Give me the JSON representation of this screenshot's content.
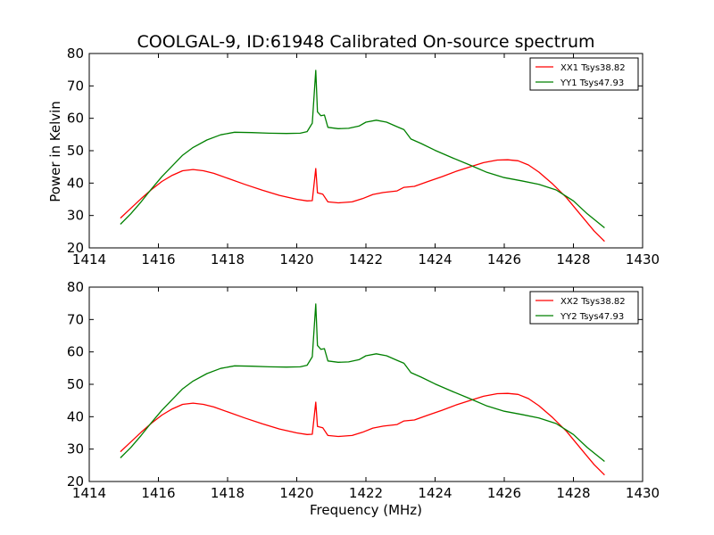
{
  "title": "COOLGAL-9, ID:61948 Calibrated On-source spectrum",
  "xlabel": "Frequency (MHz)",
  "ylabel": "Power in Kelvin",
  "colors": {
    "xx": "#ff0000",
    "yy": "#008000"
  },
  "chart_data": [
    {
      "type": "line",
      "xlim": [
        1414,
        1430
      ],
      "ylim": [
        20,
        80
      ],
      "xticks": [
        "1414",
        "1416",
        "1418",
        "1420",
        "1422",
        "1424",
        "1426",
        "1428",
        "1430"
      ],
      "yticks": [
        "20",
        "30",
        "40",
        "50",
        "60",
        "70",
        "80"
      ],
      "ylabel": "Power in Kelvin",
      "xlabel": "",
      "legend_position": "top-right",
      "series": [
        {
          "name": "XX1 Tsys38.82",
          "color": "#ff0000",
          "points": [
            [
              1414.9,
              29.2
            ],
            [
              1415.2,
              32.2
            ],
            [
              1415.5,
              35.2
            ],
            [
              1415.8,
              38.0
            ],
            [
              1416.1,
              40.5
            ],
            [
              1416.4,
              42.4
            ],
            [
              1416.7,
              43.8
            ],
            [
              1417.0,
              44.2
            ],
            [
              1417.3,
              43.8
            ],
            [
              1417.6,
              43.0
            ],
            [
              1418.0,
              41.5
            ],
            [
              1418.5,
              39.6
            ],
            [
              1419.0,
              37.8
            ],
            [
              1419.5,
              36.2
            ],
            [
              1420.0,
              35.0
            ],
            [
              1420.3,
              34.5
            ],
            [
              1420.45,
              34.6
            ],
            [
              1420.55,
              44.5
            ],
            [
              1420.6,
              37.0
            ],
            [
              1420.75,
              36.6
            ],
            [
              1420.9,
              34.2
            ],
            [
              1421.2,
              33.9
            ],
            [
              1421.6,
              34.2
            ],
            [
              1421.9,
              35.2
            ],
            [
              1422.2,
              36.5
            ],
            [
              1422.5,
              37.1
            ],
            [
              1422.9,
              37.6
            ],
            [
              1423.1,
              38.7
            ],
            [
              1423.4,
              39.0
            ],
            [
              1423.8,
              40.5
            ],
            [
              1424.2,
              42.0
            ],
            [
              1424.6,
              43.6
            ],
            [
              1425.0,
              45.0
            ],
            [
              1425.4,
              46.3
            ],
            [
              1425.8,
              47.1
            ],
            [
              1426.1,
              47.2
            ],
            [
              1426.4,
              46.9
            ],
            [
              1426.7,
              45.6
            ],
            [
              1427.0,
              43.4
            ],
            [
              1427.4,
              39.7
            ],
            [
              1427.8,
              35.5
            ],
            [
              1428.2,
              30.3
            ],
            [
              1428.6,
              25.2
            ],
            [
              1428.9,
              22.0
            ]
          ]
        },
        {
          "name": "YY1 Tsys47.93",
          "color": "#008000",
          "points": [
            [
              1414.9,
              27.3
            ],
            [
              1415.2,
              30.5
            ],
            [
              1415.5,
              34.2
            ],
            [
              1415.8,
              38.2
            ],
            [
              1416.1,
              42.0
            ],
            [
              1416.4,
              45.3
            ],
            [
              1416.7,
              48.6
            ],
            [
              1417.0,
              51.0
            ],
            [
              1417.4,
              53.3
            ],
            [
              1417.8,
              54.9
            ],
            [
              1418.2,
              55.7
            ],
            [
              1418.7,
              55.6
            ],
            [
              1419.2,
              55.4
            ],
            [
              1419.7,
              55.3
            ],
            [
              1420.1,
              55.4
            ],
            [
              1420.3,
              55.9
            ],
            [
              1420.45,
              58.5
            ],
            [
              1420.55,
              74.8
            ],
            [
              1420.6,
              62.0
            ],
            [
              1420.7,
              60.8
            ],
            [
              1420.8,
              61.0
            ],
            [
              1420.9,
              57.2
            ],
            [
              1421.2,
              56.8
            ],
            [
              1421.5,
              56.9
            ],
            [
              1421.8,
              57.6
            ],
            [
              1422.0,
              58.8
            ],
            [
              1422.3,
              59.4
            ],
            [
              1422.6,
              58.8
            ],
            [
              1422.9,
              57.4
            ],
            [
              1423.1,
              56.5
            ],
            [
              1423.3,
              53.6
            ],
            [
              1423.6,
              52.2
            ],
            [
              1424.0,
              50.1
            ],
            [
              1424.5,
              47.8
            ],
            [
              1425.0,
              45.6
            ],
            [
              1425.5,
              43.3
            ],
            [
              1426.0,
              41.7
            ],
            [
              1426.5,
              40.7
            ],
            [
              1427.0,
              39.6
            ],
            [
              1427.5,
              37.9
            ],
            [
              1428.0,
              34.5
            ],
            [
              1428.4,
              30.5
            ],
            [
              1428.9,
              26.2
            ]
          ]
        }
      ]
    },
    {
      "type": "line",
      "xlim": [
        1414,
        1430
      ],
      "ylim": [
        20,
        80
      ],
      "xticks": [
        "1414",
        "1416",
        "1418",
        "1420",
        "1422",
        "1424",
        "1426",
        "1428",
        "1430"
      ],
      "yticks": [
        "20",
        "30",
        "40",
        "50",
        "60",
        "70",
        "80"
      ],
      "ylabel": "",
      "xlabel": "Frequency (MHz)",
      "legend_position": "top-right",
      "series": [
        {
          "name": "XX2 Tsys38.82",
          "color": "#ff0000",
          "points": [
            [
              1414.9,
              29.2
            ],
            [
              1415.2,
              32.2
            ],
            [
              1415.5,
              35.2
            ],
            [
              1415.8,
              38.0
            ],
            [
              1416.1,
              40.5
            ],
            [
              1416.4,
              42.4
            ],
            [
              1416.7,
              43.8
            ],
            [
              1417.0,
              44.2
            ],
            [
              1417.3,
              43.8
            ],
            [
              1417.6,
              43.0
            ],
            [
              1418.0,
              41.5
            ],
            [
              1418.5,
              39.6
            ],
            [
              1419.0,
              37.8
            ],
            [
              1419.5,
              36.2
            ],
            [
              1420.0,
              35.0
            ],
            [
              1420.3,
              34.5
            ],
            [
              1420.45,
              34.6
            ],
            [
              1420.55,
              44.5
            ],
            [
              1420.6,
              37.0
            ],
            [
              1420.75,
              36.6
            ],
            [
              1420.9,
              34.2
            ],
            [
              1421.2,
              33.9
            ],
            [
              1421.6,
              34.2
            ],
            [
              1421.9,
              35.2
            ],
            [
              1422.2,
              36.5
            ],
            [
              1422.5,
              37.1
            ],
            [
              1422.9,
              37.6
            ],
            [
              1423.1,
              38.7
            ],
            [
              1423.4,
              39.0
            ],
            [
              1423.8,
              40.5
            ],
            [
              1424.2,
              42.0
            ],
            [
              1424.6,
              43.6
            ],
            [
              1425.0,
              45.0
            ],
            [
              1425.4,
              46.3
            ],
            [
              1425.8,
              47.1
            ],
            [
              1426.1,
              47.2
            ],
            [
              1426.4,
              46.9
            ],
            [
              1426.7,
              45.6
            ],
            [
              1427.0,
              43.4
            ],
            [
              1427.4,
              39.7
            ],
            [
              1427.8,
              35.5
            ],
            [
              1428.2,
              30.3
            ],
            [
              1428.6,
              25.2
            ],
            [
              1428.9,
              22.0
            ]
          ]
        },
        {
          "name": "YY2 Tsys47.93",
          "color": "#008000",
          "points": [
            [
              1414.9,
              27.3
            ],
            [
              1415.2,
              30.5
            ],
            [
              1415.5,
              34.2
            ],
            [
              1415.8,
              38.2
            ],
            [
              1416.1,
              42.0
            ],
            [
              1416.4,
              45.3
            ],
            [
              1416.7,
              48.6
            ],
            [
              1417.0,
              51.0
            ],
            [
              1417.4,
              53.3
            ],
            [
              1417.8,
              54.9
            ],
            [
              1418.2,
              55.7
            ],
            [
              1418.7,
              55.6
            ],
            [
              1419.2,
              55.4
            ],
            [
              1419.7,
              55.3
            ],
            [
              1420.1,
              55.4
            ],
            [
              1420.3,
              55.9
            ],
            [
              1420.45,
              58.5
            ],
            [
              1420.55,
              74.8
            ],
            [
              1420.6,
              62.0
            ],
            [
              1420.7,
              60.8
            ],
            [
              1420.8,
              61.0
            ],
            [
              1420.9,
              57.2
            ],
            [
              1421.2,
              56.8
            ],
            [
              1421.5,
              56.9
            ],
            [
              1421.8,
              57.6
            ],
            [
              1422.0,
              58.8
            ],
            [
              1422.3,
              59.4
            ],
            [
              1422.6,
              58.8
            ],
            [
              1422.9,
              57.4
            ],
            [
              1423.1,
              56.5
            ],
            [
              1423.3,
              53.6
            ],
            [
              1423.6,
              52.2
            ],
            [
              1424.0,
              50.1
            ],
            [
              1424.5,
              47.8
            ],
            [
              1425.0,
              45.6
            ],
            [
              1425.5,
              43.3
            ],
            [
              1426.0,
              41.7
            ],
            [
              1426.5,
              40.7
            ],
            [
              1427.0,
              39.6
            ],
            [
              1427.5,
              37.9
            ],
            [
              1428.0,
              34.5
            ],
            [
              1428.4,
              30.5
            ],
            [
              1428.9,
              26.2
            ]
          ]
        }
      ]
    }
  ]
}
